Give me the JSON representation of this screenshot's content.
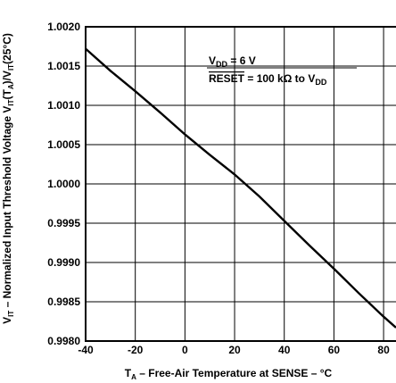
{
  "chart_data": {
    "type": "line",
    "x_axis": {
      "label": {
        "main": "T",
        "sub": "A",
        "rest": " – Free-Air Temperature at SENSE – °C"
      },
      "min": -40,
      "max": 85,
      "ticks": [
        -40,
        -20,
        0,
        20,
        40,
        60,
        80
      ],
      "tick_labels": [
        "-40",
        "-20",
        "0",
        "20",
        "40",
        "60",
        "80"
      ]
    },
    "y_axis": {
      "label": {
        "p1": "V",
        "s1": "IT",
        "p2": " – Normalized Input Threshold Voltage V",
        "s2": "IT",
        "p3": "(T",
        "s3": "A",
        "p4": ")/V",
        "s4": "IT",
        "p5": "(25°C)"
      },
      "min": 0.998,
      "max": 1.002,
      "ticks": [
        0.998,
        0.9985,
        0.999,
        0.9995,
        1.0,
        1.0005,
        1.001,
        1.0015,
        1.002
      ],
      "tick_labels": [
        "0.9980",
        "0.9985",
        "0.9990",
        "0.9995",
        "1.0000",
        "1.0005",
        "1.0010",
        "1.0015",
        "1.0020"
      ]
    },
    "grid": true,
    "annotation": {
      "line1_main": "V",
      "line1_sub": "DD",
      "line1_rest": " = 6 V",
      "line2_over": "RESET",
      "line2_mid": " = 100 kΩ to V",
      "line2_sub": "DD"
    },
    "series": [
      {
        "x": [
          -40,
          -30,
          -20,
          -10,
          0,
          10,
          20,
          30,
          40,
          50,
          60,
          70,
          80,
          85
        ],
        "y": [
          1.00172,
          1.00144,
          1.00118,
          1.00091,
          1.00063,
          1.00037,
          1.00012,
          0.99984,
          0.99953,
          0.99922,
          0.99892,
          0.99861,
          0.99831,
          0.99817
        ]
      }
    ]
  }
}
